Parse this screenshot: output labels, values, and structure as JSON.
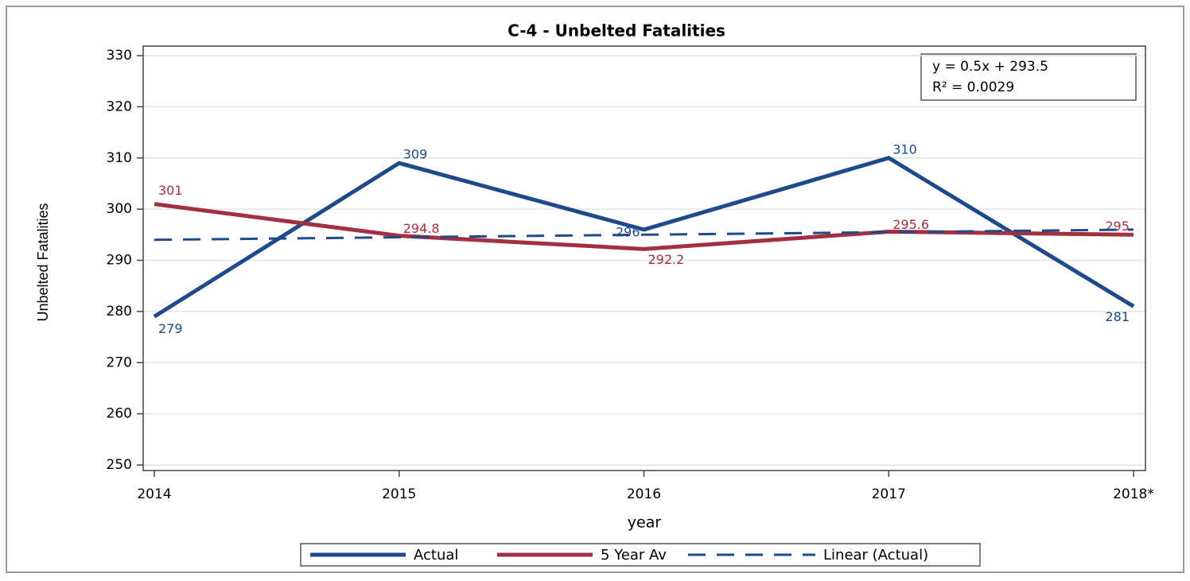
{
  "chart_data": {
    "type": "line",
    "title": "C-4 - Unbelted Fatalities",
    "x_label": "year",
    "y_label": "Unbelted Fatalities",
    "categories": [
      "2014",
      "2015",
      "2016",
      "2017",
      "2018*"
    ],
    "series": [
      {
        "name": "Actual",
        "color": "#1f4a8a",
        "values": [
          279,
          309,
          296,
          310,
          281
        ],
        "value_labels": [
          "279",
          "309",
          "296",
          "310",
          "281"
        ]
      },
      {
        "name": "5 Year Av",
        "color": "#a3303f",
        "values": [
          301,
          294.8,
          292.2,
          295.6,
          295
        ],
        "value_labels": [
          "301",
          "294.8",
          "292.2",
          "295.6",
          "295."
        ]
      },
      {
        "name": "Linear (Actual)",
        "color": "#1f4a8a",
        "dashed": true,
        "values": [
          294,
          294.5,
          295,
          295.5,
          296
        ]
      }
    ],
    "annotations": [
      "y   =  0.5x + 293.5",
      "R² =  0.0029"
    ],
    "ylim": [
      250,
      330
    ],
    "yticks": [
      250,
      260,
      270,
      280,
      290,
      300,
      310,
      320,
      330
    ],
    "grid": true,
    "legend": "bottom"
  }
}
